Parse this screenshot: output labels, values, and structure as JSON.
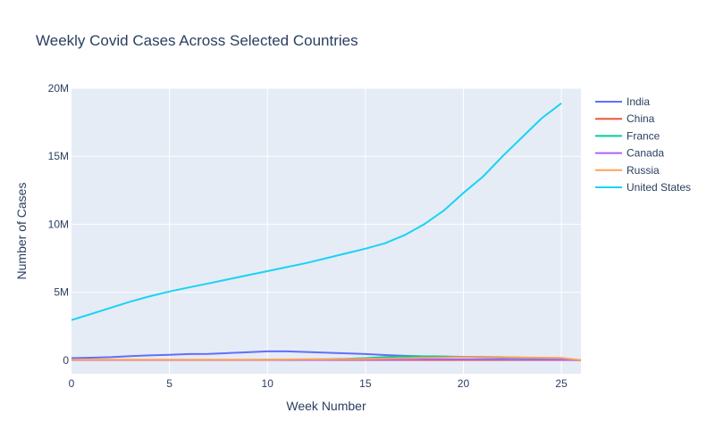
{
  "chart_data": {
    "type": "line",
    "title": "Weekly Covid Cases Across Selected Countries",
    "xlabel": "Week Number",
    "ylabel": "Number of Cases",
    "xlim": [
      0,
      26
    ],
    "ylim": [
      -1000000,
      20000000
    ],
    "x_ticks": [
      0,
      5,
      10,
      15,
      20,
      25
    ],
    "y_ticks": [
      {
        "value": 0,
        "label": "0"
      },
      {
        "value": 5000000,
        "label": "5M"
      },
      {
        "value": 10000000,
        "label": "10M"
      },
      {
        "value": 15000000,
        "label": "15M"
      },
      {
        "value": 20000000,
        "label": "20M"
      }
    ],
    "grid": true,
    "legend_position": "right",
    "x": [
      0,
      1,
      2,
      3,
      4,
      5,
      6,
      7,
      8,
      9,
      10,
      11,
      12,
      13,
      14,
      15,
      16,
      17,
      18,
      19,
      20,
      21,
      22,
      23,
      24,
      25,
      26
    ],
    "series": [
      {
        "name": "India",
        "color": "#636efa",
        "values": [
          150000,
          180000,
          220000,
          300000,
          350000,
          400000,
          450000,
          460000,
          520000,
          580000,
          650000,
          650000,
          600000,
          550000,
          500000,
          450000,
          380000,
          320000,
          280000,
          260000,
          250000,
          240000,
          220000,
          180000,
          140000,
          100000,
          0
        ]
      },
      {
        "name": "China",
        "color": "#ef553b",
        "values": [
          10000,
          10000,
          10000,
          10000,
          10000,
          10000,
          10000,
          10000,
          10000,
          10000,
          10000,
          10000,
          10000,
          10000,
          10000,
          10000,
          10000,
          10000,
          10000,
          10000,
          10000,
          10000,
          10000,
          10000,
          10000,
          10000,
          0
        ]
      },
      {
        "name": "France",
        "color": "#00cc96",
        "values": [
          20000,
          20000,
          20000,
          20000,
          20000,
          20000,
          20000,
          20000,
          20000,
          20000,
          30000,
          40000,
          50000,
          70000,
          100000,
          150000,
          220000,
          280000,
          280000,
          260000,
          220000,
          200000,
          180000,
          150000,
          120000,
          100000,
          0
        ]
      },
      {
        "name": "Canada",
        "color": "#ab63fa",
        "values": [
          20000,
          20000,
          20000,
          20000,
          20000,
          20000,
          20000,
          20000,
          20000,
          20000,
          20000,
          20000,
          20000,
          20000,
          30000,
          30000,
          40000,
          40000,
          50000,
          50000,
          50000,
          50000,
          50000,
          40000,
          40000,
          30000,
          0
        ]
      },
      {
        "name": "Russia",
        "color": "#ffa15a",
        "values": [
          40000,
          40000,
          40000,
          40000,
          40000,
          40000,
          40000,
          40000,
          40000,
          40000,
          40000,
          50000,
          60000,
          70000,
          80000,
          90000,
          120000,
          150000,
          180000,
          200000,
          220000,
          220000,
          220000,
          200000,
          180000,
          170000,
          0
        ]
      },
      {
        "name": "United States",
        "color": "#19d3f3",
        "values": [
          2950000,
          3400000,
          3850000,
          4300000,
          4700000,
          5050000,
          5350000,
          5650000,
          5950000,
          6250000,
          6550000,
          6850000,
          7150000,
          7500000,
          7850000,
          8200000,
          8600000,
          9200000,
          10000000,
          11000000,
          12300000,
          13500000,
          15000000,
          16400000,
          17800000,
          18900000,
          null
        ]
      }
    ]
  }
}
